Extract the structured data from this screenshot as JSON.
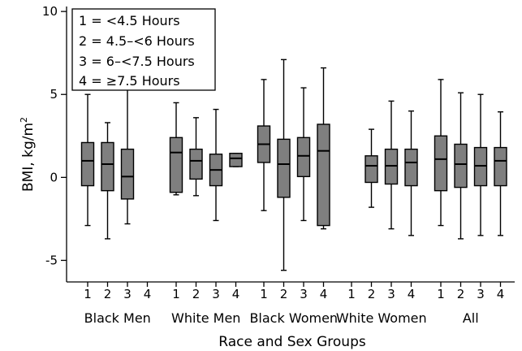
{
  "chart_data": {
    "type": "boxplot",
    "xlabel": "Race and Sex Groups",
    "ylabel_main": "BMI, kg/m",
    "ylabel_sup": "2",
    "ylim": [
      -6.3,
      10.3
    ],
    "yticks": [
      -5,
      0,
      5,
      10
    ],
    "ytick_labels": [
      "-5",
      "0",
      "5",
      "10"
    ],
    "grid": false,
    "legend_position": "top-left",
    "legend": [
      "1 = <4.5 Hours",
      "2 = 4.5–<6 Hours",
      "3 = 6–<7.5 Hours",
      "4 = ≥7.5 Hours"
    ],
    "box_color": "#7f7f7f",
    "groups": [
      {
        "label": "Black Men",
        "boxes": [
          {
            "category": "1",
            "whisker_low": -2.9,
            "q1": -0.5,
            "median": 1.0,
            "q3": 2.1,
            "whisker_high": 5.0
          },
          {
            "category": "2",
            "whisker_low": -3.7,
            "q1": -0.8,
            "median": 0.8,
            "q3": 2.1,
            "whisker_high": 3.3
          },
          {
            "category": "3",
            "whisker_low": -2.8,
            "q1": -1.3,
            "median": 0.05,
            "q3": 1.7,
            "whisker_high": 5.5
          },
          {
            "category": "4",
            "empty": true
          }
        ]
      },
      {
        "label": "White Men",
        "boxes": [
          {
            "category": "1",
            "whisker_low": -1.05,
            "q1": -0.9,
            "median": 1.5,
            "q3": 2.4,
            "whisker_high": 4.5
          },
          {
            "category": "2",
            "whisker_low": -1.1,
            "q1": -0.1,
            "median": 1.0,
            "q3": 1.7,
            "whisker_high": 3.6
          },
          {
            "category": "3",
            "whisker_low": -2.6,
            "q1": -0.5,
            "median": 0.45,
            "q3": 1.4,
            "whisker_high": 4.1
          },
          {
            "category": "4",
            "whisker_low": 0.65,
            "q1": 0.65,
            "median": 1.15,
            "q3": 1.45,
            "whisker_high": 1.45
          }
        ]
      },
      {
        "label": "Black Women",
        "boxes": [
          {
            "category": "1",
            "whisker_low": -2.0,
            "q1": 0.9,
            "median": 2.0,
            "q3": 3.1,
            "whisker_high": 5.9
          },
          {
            "category": "2",
            "whisker_low": -5.6,
            "q1": -1.2,
            "median": 0.8,
            "q3": 2.3,
            "whisker_high": 7.1
          },
          {
            "category": "3",
            "whisker_low": -2.6,
            "q1": 0.05,
            "median": 1.3,
            "q3": 2.4,
            "whisker_high": 5.4
          },
          {
            "category": "4",
            "whisker_low": -3.1,
            "q1": -2.9,
            "median": 1.6,
            "q3": 3.2,
            "whisker_high": 6.6
          }
        ]
      },
      {
        "label": "White Women",
        "boxes": [
          {
            "category": "1",
            "empty": true
          },
          {
            "category": "2",
            "whisker_low": -1.8,
            "q1": -0.3,
            "median": 0.7,
            "q3": 1.3,
            "whisker_high": 2.9
          },
          {
            "category": "3",
            "whisker_low": -3.1,
            "q1": -0.4,
            "median": 0.7,
            "q3": 1.7,
            "whisker_high": 4.6
          },
          {
            "category": "4",
            "whisker_low": -3.5,
            "q1": -0.5,
            "median": 0.9,
            "q3": 1.7,
            "whisker_high": 4.0
          }
        ]
      },
      {
        "label": "All",
        "boxes": [
          {
            "category": "1",
            "whisker_low": -2.9,
            "q1": -0.8,
            "median": 1.1,
            "q3": 2.5,
            "whisker_high": 5.9
          },
          {
            "category": "2",
            "whisker_low": -3.7,
            "q1": -0.6,
            "median": 0.8,
            "q3": 2.0,
            "whisker_high": 5.1
          },
          {
            "category": "3",
            "whisker_low": -3.5,
            "q1": -0.5,
            "median": 0.7,
            "q3": 1.8,
            "whisker_high": 5.0
          },
          {
            "category": "4",
            "whisker_low": -3.5,
            "q1": -0.5,
            "median": 1.0,
            "q3": 1.8,
            "whisker_high": 3.95
          }
        ]
      }
    ]
  }
}
